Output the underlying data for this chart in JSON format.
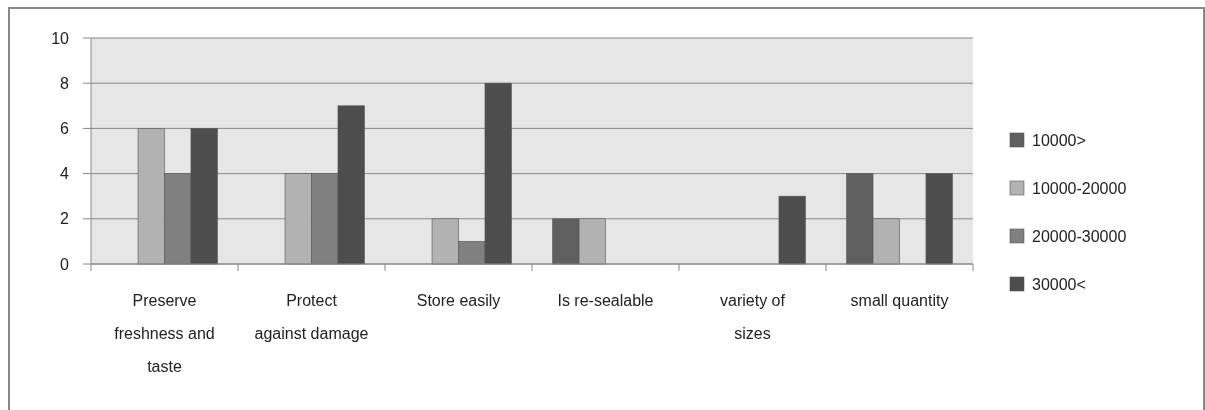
{
  "chart_data": {
    "type": "bar",
    "categories": [
      "Preserve freshness and taste",
      "Protect against damage",
      "Store easily",
      "Is re-sealable",
      "variety of sizes",
      "small quantity"
    ],
    "series": [
      {
        "name": "10000>",
        "color": "#5f5f5f",
        "values": [
          0,
          0,
          0,
          2,
          0,
          4
        ]
      },
      {
        "name": "10000-20000",
        "color": "#b2b2b2",
        "values": [
          6,
          4,
          2,
          2,
          0,
          2
        ]
      },
      {
        "name": "20000-30000",
        "color": "#808080",
        "values": [
          4,
          4,
          1,
          0,
          0,
          0
        ]
      },
      {
        "name": "30000<",
        "color": "#4d4d4d",
        "values": [
          6,
          7,
          8,
          0,
          3,
          4
        ]
      }
    ],
    "ylim": [
      0,
      10
    ],
    "yticks": [
      0,
      2,
      4,
      6,
      8,
      10
    ],
    "grid": "y",
    "legend": "right"
  }
}
